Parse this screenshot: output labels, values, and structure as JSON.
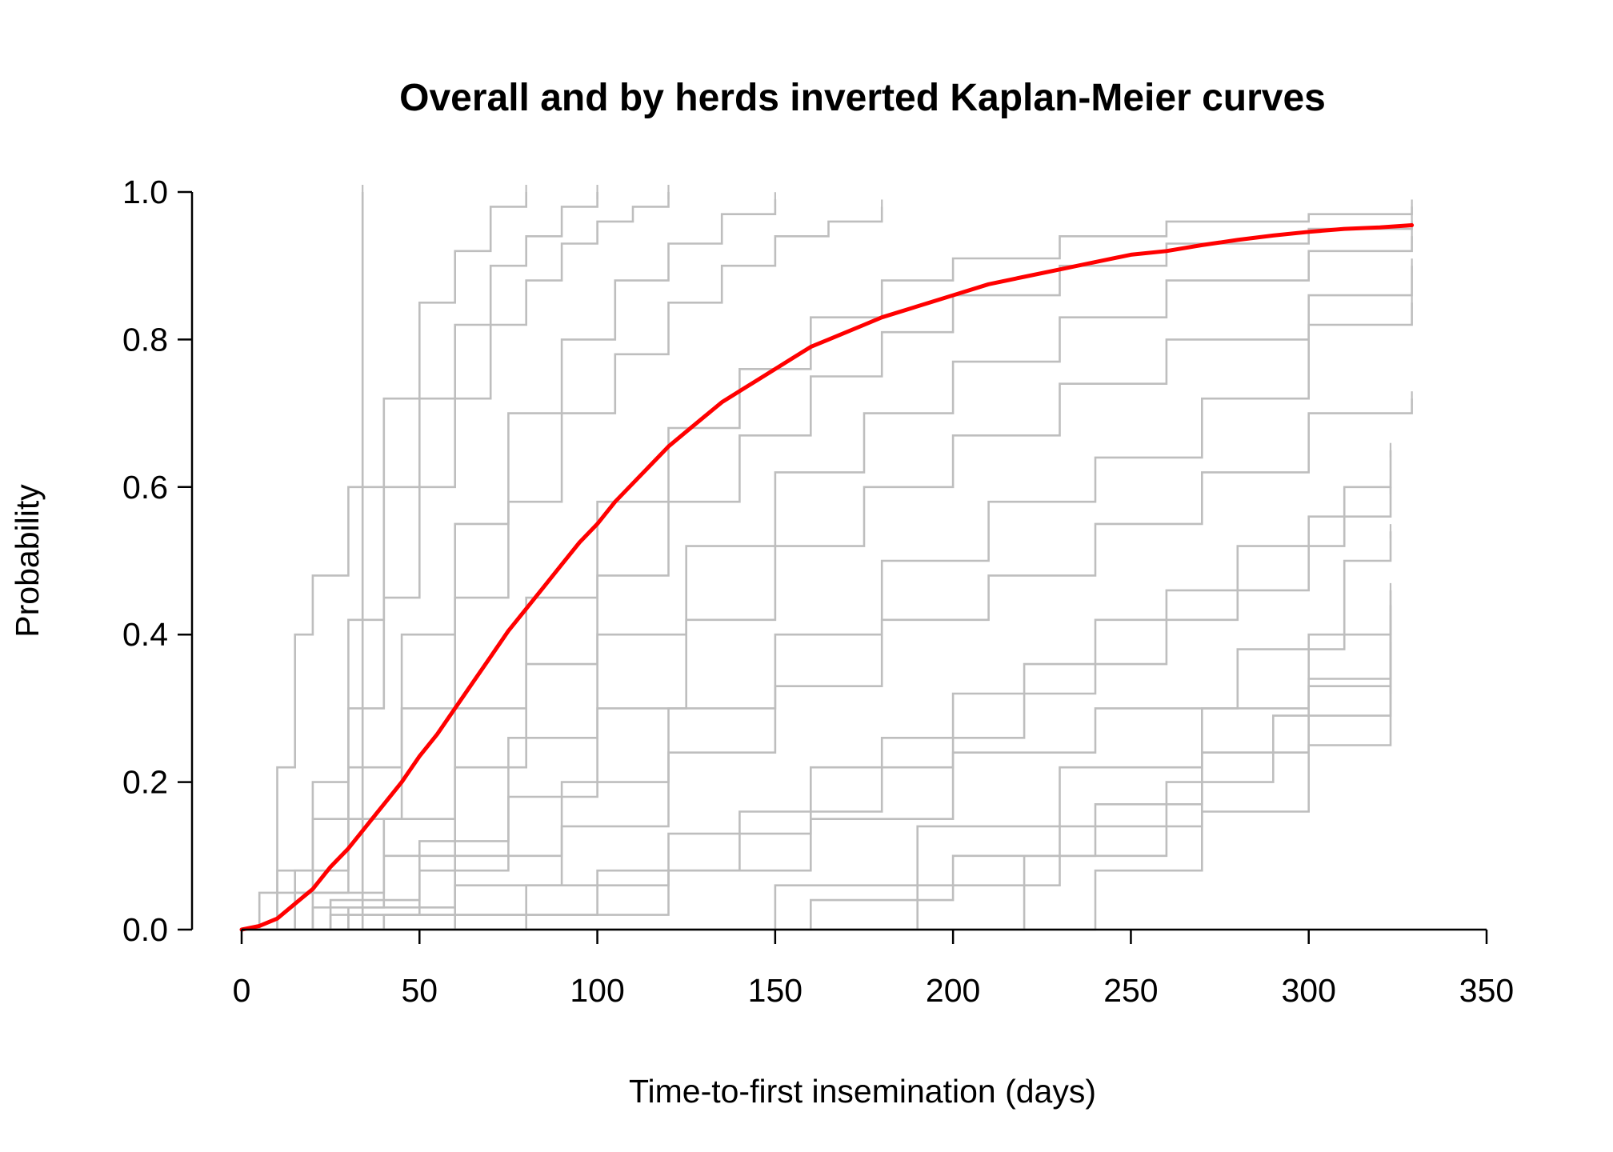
{
  "chart_data": {
    "type": "line",
    "title": "Overall and by herds inverted Kaplan-Meier curves",
    "xlabel": "Time-to-first insemination (days)",
    "ylabel": "Probability",
    "xlim": [
      0,
      350
    ],
    "ylim": [
      0,
      1
    ],
    "xticks": [
      0,
      50,
      100,
      150,
      200,
      250,
      300,
      350
    ],
    "yticks": [
      0.0,
      0.2,
      0.4,
      0.6,
      0.8,
      1.0
    ],
    "ytick_labels": [
      "0.0",
      "0.2",
      "0.4",
      "0.6",
      "0.8",
      "1.0"
    ],
    "grid": false,
    "legend": "none",
    "colors": {
      "herds": "#BEBEBE",
      "overall": "#FF0000"
    },
    "overall": {
      "x": [
        0,
        5,
        10,
        15,
        20,
        25,
        30,
        35,
        40,
        45,
        50,
        55,
        60,
        65,
        70,
        75,
        80,
        85,
        90,
        95,
        100,
        105,
        110,
        115,
        120,
        125,
        130,
        135,
        140,
        145,
        150,
        155,
        160,
        165,
        170,
        175,
        180,
        190,
        200,
        210,
        220,
        230,
        240,
        250,
        260,
        270,
        280,
        290,
        300,
        310,
        320,
        329
      ],
      "y": [
        0.0,
        0.005,
        0.015,
        0.035,
        0.055,
        0.085,
        0.11,
        0.14,
        0.17,
        0.2,
        0.235,
        0.265,
        0.3,
        0.335,
        0.37,
        0.405,
        0.435,
        0.465,
        0.495,
        0.525,
        0.55,
        0.58,
        0.605,
        0.63,
        0.655,
        0.675,
        0.695,
        0.715,
        0.73,
        0.745,
        0.76,
        0.775,
        0.79,
        0.8,
        0.81,
        0.82,
        0.83,
        0.845,
        0.86,
        0.875,
        0.885,
        0.895,
        0.905,
        0.915,
        0.92,
        0.928,
        0.935,
        0.941,
        0.946,
        0.95,
        0.952,
        0.955
      ]
    },
    "herds": [
      {
        "x": [
          0,
          34
        ],
        "y": [
          0.0,
          1.0
        ]
      },
      {
        "x": [
          0,
          5,
          10,
          15,
          20,
          30,
          40,
          50,
          60,
          70,
          80
        ],
        "y": [
          0.0,
          0.05,
          0.22,
          0.4,
          0.48,
          0.6,
          0.72,
          0.85,
          0.92,
          0.98,
          1.0
        ]
      },
      {
        "x": [
          0,
          10,
          20,
          30,
          40,
          50,
          60,
          70,
          80,
          90,
          100
        ],
        "y": [
          0.0,
          0.08,
          0.2,
          0.42,
          0.6,
          0.72,
          0.82,
          0.9,
          0.94,
          0.98,
          1.0
        ]
      },
      {
        "x": [
          0,
          10,
          20,
          30,
          40,
          50,
          60,
          70,
          80,
          90,
          100,
          110,
          120
        ],
        "y": [
          0.0,
          0.05,
          0.15,
          0.3,
          0.45,
          0.6,
          0.72,
          0.82,
          0.88,
          0.93,
          0.96,
          0.98,
          1.0
        ]
      },
      {
        "x": [
          0,
          15,
          30,
          45,
          60,
          75,
          90,
          105,
          120,
          135,
          150
        ],
        "y": [
          0.0,
          0.08,
          0.22,
          0.4,
          0.55,
          0.7,
          0.8,
          0.88,
          0.93,
          0.97,
          0.99
        ]
      },
      {
        "x": [
          0,
          15,
          30,
          45,
          60,
          75,
          90,
          105,
          120,
          135,
          150,
          165,
          180
        ],
        "y": [
          0.0,
          0.05,
          0.15,
          0.3,
          0.45,
          0.58,
          0.7,
          0.78,
          0.85,
          0.9,
          0.94,
          0.96,
          0.98
        ]
      },
      {
        "x": [
          0,
          20,
          40,
          60,
          80,
          100,
          120,
          140,
          160,
          180,
          200,
          230,
          260,
          300,
          329
        ],
        "y": [
          0.0,
          0.05,
          0.15,
          0.3,
          0.45,
          0.58,
          0.68,
          0.76,
          0.83,
          0.88,
          0.91,
          0.94,
          0.96,
          0.97,
          0.98
        ]
      },
      {
        "x": [
          0,
          20,
          40,
          60,
          80,
          100,
          120,
          140,
          160,
          180,
          200,
          230,
          260,
          300,
          329
        ],
        "y": [
          0.0,
          0.03,
          0.1,
          0.22,
          0.36,
          0.48,
          0.58,
          0.67,
          0.75,
          0.81,
          0.86,
          0.9,
          0.93,
          0.95,
          0.96
        ]
      },
      {
        "x": [
          0,
          25,
          50,
          75,
          100,
          125,
          150,
          175,
          200,
          230,
          260,
          300,
          329
        ],
        "y": [
          0.0,
          0.04,
          0.12,
          0.26,
          0.4,
          0.52,
          0.62,
          0.7,
          0.77,
          0.83,
          0.88,
          0.92,
          0.94
        ]
      },
      {
        "x": [
          0,
          25,
          50,
          75,
          100,
          125,
          150,
          175,
          200,
          230,
          260,
          300,
          329
        ],
        "y": [
          0.0,
          0.02,
          0.08,
          0.18,
          0.3,
          0.42,
          0.52,
          0.6,
          0.67,
          0.74,
          0.8,
          0.86,
          0.9
        ]
      },
      {
        "x": [
          0,
          30,
          60,
          90,
          120,
          150,
          180,
          210,
          240,
          270,
          300,
          329
        ],
        "y": [
          0.0,
          0.03,
          0.1,
          0.2,
          0.3,
          0.4,
          0.5,
          0.58,
          0.64,
          0.72,
          0.82,
          0.85
        ]
      },
      {
        "x": [
          0,
          30,
          60,
          90,
          120,
          150,
          180,
          210,
          240,
          270,
          300,
          329
        ],
        "y": [
          0.0,
          0.02,
          0.06,
          0.14,
          0.24,
          0.33,
          0.42,
          0.48,
          0.55,
          0.62,
          0.7,
          0.72
        ]
      },
      {
        "x": [
          0,
          40,
          80,
          120,
          160,
          200,
          240,
          280,
          310,
          323
        ],
        "y": [
          0.0,
          0.02,
          0.06,
          0.13,
          0.22,
          0.32,
          0.42,
          0.52,
          0.6,
          0.65
        ]
      },
      {
        "x": [
          0,
          60,
          100,
          140,
          180,
          220,
          260,
          300,
          323
        ],
        "y": [
          0.0,
          0.02,
          0.08,
          0.16,
          0.26,
          0.36,
          0.46,
          0.56,
          0.6
        ]
      },
      {
        "x": [
          0,
          80,
          120,
          160,
          200,
          240,
          280,
          310,
          323
        ],
        "y": [
          0.0,
          0.02,
          0.08,
          0.15,
          0.24,
          0.3,
          0.38,
          0.5,
          0.54
        ]
      },
      {
        "x": [
          0,
          113,
          150,
          190,
          230,
          270,
          300,
          323
        ],
        "y": [
          0.0,
          0.0,
          0.06,
          0.14,
          0.22,
          0.3,
          0.4,
          0.46
        ]
      },
      {
        "x": [
          0,
          120,
          160,
          200,
          240,
          270,
          300,
          323
        ],
        "y": [
          0.0,
          0.0,
          0.04,
          0.1,
          0.17,
          0.24,
          0.34,
          0.44
        ]
      },
      {
        "x": [
          0,
          150,
          190,
          230,
          270,
          300,
          323
        ],
        "y": [
          0.0,
          0.0,
          0.06,
          0.14,
          0.24,
          0.33,
          0.42
        ]
      },
      {
        "x": [
          0,
          180,
          220,
          260,
          290,
          323
        ],
        "y": [
          0.0,
          0.0,
          0.1,
          0.2,
          0.29,
          0.39
        ]
      },
      {
        "x": [
          0,
          200,
          240,
          270,
          300,
          323
        ],
        "y": [
          0.0,
          0.0,
          0.08,
          0.16,
          0.25,
          0.33
        ]
      }
    ]
  }
}
